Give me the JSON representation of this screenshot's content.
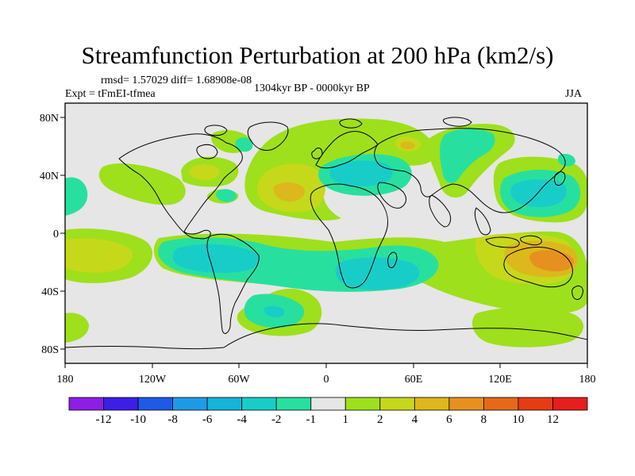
{
  "title": "Streamfunction Perturbation at 200 hPa (km2/s)",
  "stats": "rmsd= 1.57029 diff= 1.68908e-08",
  "experiment": "Expt = tFmEI-tfmea",
  "period": "1304kyr BP - 0000kyr BP",
  "season": "JJA",
  "colors": {
    "neutral": "#e6e6e6",
    "c_neg1": "#27e0a0",
    "c_neg2": "#18cdc8",
    "c_neg4": "#15b4d8",
    "c_pos1": "#9ee01b",
    "c_pos2": "#c6d81a",
    "c_pos4": "#dcb81c",
    "c_pos6": "#e6911f"
  },
  "chart_data": {
    "type": "heatmap",
    "x_ticks": [
      "180",
      "120W",
      "60W",
      "0",
      "60E",
      "120E",
      "180"
    ],
    "y_ticks": [
      "80N",
      "40N",
      "0",
      "40S",
      "80S"
    ],
    "x_range_deg": [
      -180,
      180
    ],
    "y_range_deg": [
      -90,
      90
    ],
    "colorbar": {
      "levels": [
        "-12",
        "-10",
        "-8",
        "-6",
        "-4",
        "-2",
        "-1",
        "1",
        "2",
        "4",
        "6",
        "8",
        "10",
        "12"
      ],
      "colors": [
        "#8c1ee6",
        "#3c1ee6",
        "#1e5ae6",
        "#1e9be6",
        "#15b4d8",
        "#18cdc8",
        "#27e0a0",
        "#e6e6e6",
        "#9ee01b",
        "#c6d81a",
        "#dcb81c",
        "#e6911f",
        "#e6691a",
        "#e63c14",
        "#e61e1e"
      ]
    }
  }
}
